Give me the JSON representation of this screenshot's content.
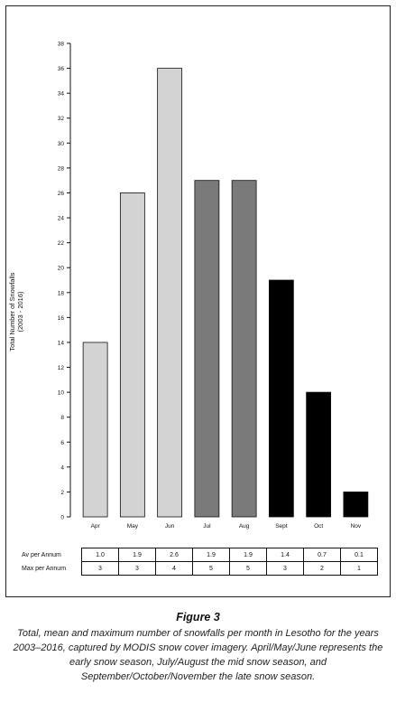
{
  "chart_data": {
    "type": "bar",
    "categories": [
      "Apr",
      "May",
      "Jun",
      "Jul",
      "Aug",
      "Sept",
      "Oct",
      "Nov"
    ],
    "values": [
      14,
      26,
      36,
      27,
      27,
      19,
      10,
      2
    ],
    "ylabel": "Total Number of Snowfalls",
    "ylabel2": "(2003 - 2016)",
    "ylim": [
      0,
      38
    ],
    "yticks": [
      0,
      2,
      4,
      6,
      8,
      10,
      12,
      14,
      16,
      18,
      20,
      22,
      24,
      26,
      28,
      30,
      32,
      34,
      36,
      38
    ],
    "grid": false,
    "colors": [
      "#d3d3d3",
      "#d3d3d3",
      "#d3d3d3",
      "#7a7a7a",
      "#7a7a7a",
      "#000000",
      "#000000",
      "#000000"
    ]
  },
  "table": {
    "rows": [
      {
        "label": "Av per Annum",
        "values": [
          "1.0",
          "1.9",
          "2.6",
          "1.9",
          "1.9",
          "1.4",
          "0.7",
          "0.1"
        ]
      },
      {
        "label": "Max per Annum",
        "values": [
          "3",
          "3",
          "4",
          "5",
          "5",
          "3",
          "2",
          "1"
        ]
      }
    ]
  },
  "figure": {
    "title": "Figure 3",
    "caption": "Total, mean and maximum number of snowfalls per month in Lesotho for the years 2003–2016, captured by MODIS snow cover imagery. April/May/June represents the early snow season, July/August the mid snow season, and September/October/November the late snow season."
  }
}
